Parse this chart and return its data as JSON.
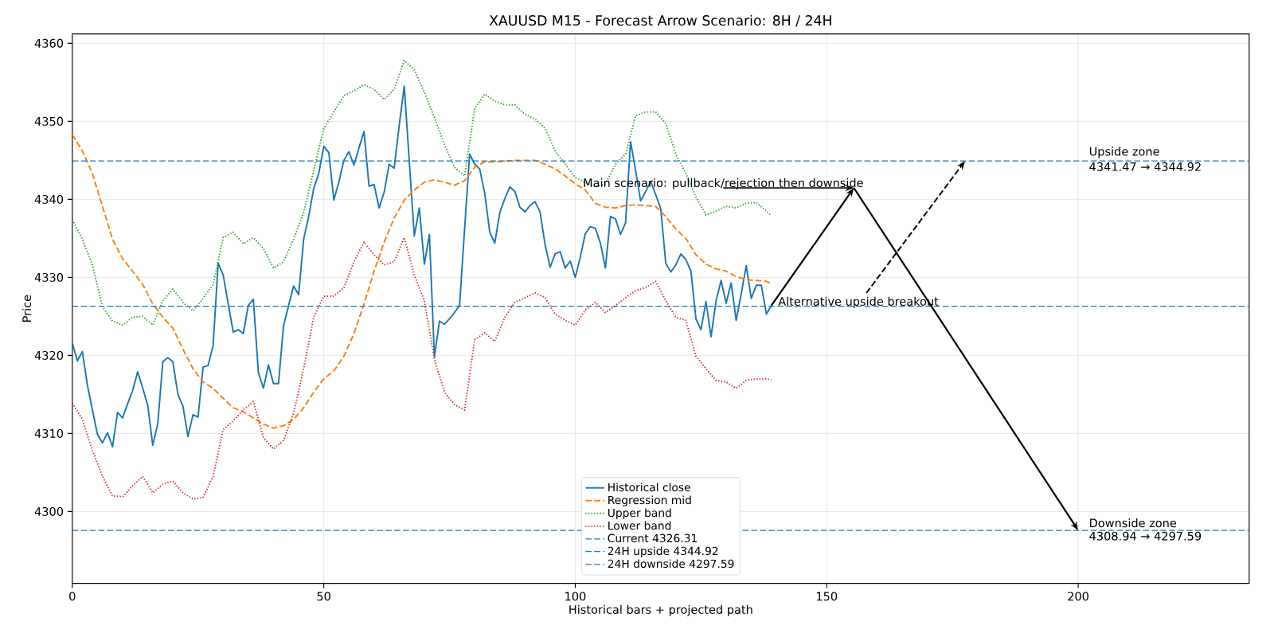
{
  "chart_data": {
    "type": "line",
    "title": "XAUUSD M15 - Forecast Arrow Scenario: 8H / 24H",
    "xlabel": "Historical bars + projected path",
    "ylabel": "Price",
    "xlim": [
      0,
      234
    ],
    "ylim": [
      4290.8,
      4361.2
    ],
    "xticks": [
      0,
      50,
      100,
      150,
      200
    ],
    "yticks": [
      4300,
      4310,
      4320,
      4330,
      4340,
      4350,
      4360
    ],
    "grid": true,
    "legend": "bottom",
    "series": [
      {
        "name": "Historical close",
        "color": "#1f77b4",
        "line_style": "solid",
        "x": [
          0,
          1,
          2,
          3,
          4,
          5,
          6,
          7,
          8,
          9,
          10,
          11,
          12,
          13,
          14,
          15,
          16,
          17,
          18,
          19,
          20,
          21,
          22,
          23,
          24,
          25,
          26,
          27,
          28,
          29,
          30,
          31,
          32,
          33,
          34,
          35,
          36,
          37,
          38,
          39,
          40,
          41,
          42,
          43,
          44,
          45,
          46,
          47,
          48,
          49,
          50,
          51,
          52,
          53,
          54,
          55,
          56,
          57,
          58,
          59,
          60,
          61,
          62,
          63,
          64,
          65,
          66,
          67,
          68,
          69,
          70,
          71,
          72,
          73,
          74,
          75,
          76,
          77,
          78,
          79,
          80,
          81,
          82,
          83,
          84,
          85,
          86,
          87,
          88,
          89,
          90,
          91,
          92,
          93,
          94,
          95,
          96,
          97,
          98,
          99,
          100,
          101,
          102,
          103,
          104,
          105,
          106,
          107,
          108,
          109,
          110,
          111,
          112,
          113,
          114,
          115,
          116,
          117,
          118,
          119,
          120,
          121,
          122,
          123,
          124,
          125,
          126,
          127,
          128,
          129,
          130,
          131,
          132,
          133,
          134,
          135,
          136,
          137,
          138,
          139
        ],
        "values": [
          4321.6,
          4319.3,
          4320.5,
          4316.2,
          4313.0,
          4309.9,
          4308.8,
          4310.1,
          4308.3,
          4312.7,
          4312.0,
          4313.8,
          4315.5,
          4317.9,
          4315.8,
          4313.6,
          4308.5,
          4311.3,
          4319.2,
          4319.7,
          4319.2,
          4315.0,
          4313.5,
          4309.6,
          4312.4,
          4312.1,
          4318.5,
          4318.7,
          4321.3,
          4331.8,
          4330.3,
          4326.6,
          4323.0,
          4323.3,
          4322.8,
          4326.4,
          4327.2,
          4317.8,
          4315.8,
          4318.8,
          4316.4,
          4316.4,
          4323.8,
          4326.4,
          4328.9,
          4327.8,
          4334.9,
          4337.8,
          4341.4,
          4343.3,
          4346.8,
          4346.0,
          4339.9,
          4342.2,
          4345.0,
          4346.1,
          4344.4,
          4346.6,
          4348.7,
          4341.7,
          4341.9,
          4338.9,
          4340.9,
          4344.5,
          4344.0,
          4349.5,
          4354.5,
          4344.9,
          4335.3,
          4338.9,
          4331.7,
          4335.5,
          4319.8,
          4324.4,
          4324.0,
          4324.7,
          4325.5,
          4326.4,
          4336.2,
          4345.8,
          4344.5,
          4343.9,
          4340.8,
          4335.8,
          4334.4,
          4338.3,
          4340.1,
          4341.6,
          4341.0,
          4339.0,
          4338.4,
          4339.2,
          4339.7,
          4338.4,
          4334.2,
          4331.3,
          4333.0,
          4333.3,
          4331.2,
          4332.1,
          4330.0,
          4332.6,
          4335.6,
          4336.5,
          4336.3,
          4334.4,
          4331.2,
          4337.8,
          4337.5,
          4335.5,
          4337.0,
          4347.4,
          4343.7,
          4339.8,
          4341.0,
          4342.3,
          4340.6,
          4338.8,
          4331.8,
          4330.7,
          4331.6,
          4333.0,
          4332.3,
          4330.8,
          4324.7,
          4323.3,
          4326.9,
          4322.4,
          4327.0,
          4329.6,
          4326.7,
          4329.3,
          4324.5,
          4327.9,
          4331.5,
          4327.3,
          4329.0,
          4329.0,
          4325.3,
          4326.4
        ]
      },
      {
        "name": "Regression mid",
        "color": "#ff7f0e",
        "line_style": "dashed",
        "x": [
          0,
          2,
          4,
          6,
          8,
          10,
          12,
          14,
          16,
          18,
          20,
          22,
          24,
          26,
          28,
          30,
          32,
          34,
          36,
          38,
          40,
          42,
          44,
          46,
          48,
          50,
          52,
          54,
          56,
          58,
          60,
          62,
          64,
          66,
          68,
          70,
          72,
          74,
          76,
          78,
          80,
          82,
          84,
          86,
          88,
          90,
          92,
          94,
          96,
          98,
          100,
          102,
          104,
          106,
          108,
          110,
          112,
          114,
          116,
          118,
          120,
          122,
          124,
          126,
          128,
          130,
          132,
          134,
          136,
          138,
          139
        ],
        "values": [
          4348.3,
          4346.2,
          4343.3,
          4339.1,
          4334.9,
          4332.4,
          4330.8,
          4329.1,
          4326.6,
          4324.9,
          4323.5,
          4320.8,
          4318.3,
          4316.6,
          4315.8,
          4314.5,
          4313.3,
          4312.8,
          4312.0,
          4311.2,
          4310.7,
          4311.0,
          4311.8,
          4313.3,
          4315.3,
          4317.0,
          4318.0,
          4319.9,
          4322.8,
          4326.6,
          4330.8,
          4334.5,
          4337.6,
          4339.9,
          4341.2,
          4342.2,
          4342.5,
          4342.2,
          4341.8,
          4342.4,
          4344.1,
          4344.8,
          4344.8,
          4344.9,
          4345.0,
          4345.0,
          4345.0,
          4344.5,
          4343.9,
          4343.0,
          4342.0,
          4341.2,
          4339.5,
          4339.0,
          4338.9,
          4339.2,
          4339.3,
          4339.2,
          4339.1,
          4337.8,
          4336.2,
          4335.0,
          4332.9,
          4331.7,
          4331.1,
          4330.8,
          4330.1,
          4329.7,
          4329.6,
          4329.5,
          4329.2
        ]
      },
      {
        "name": "Upper band",
        "color": "#2ca02c",
        "line_style": "dotted",
        "x": [
          0,
          2,
          4,
          6,
          8,
          10,
          12,
          14,
          16,
          18,
          20,
          22,
          24,
          26,
          28,
          30,
          32,
          34,
          36,
          38,
          40,
          42,
          44,
          46,
          48,
          50,
          52,
          54,
          56,
          58,
          60,
          62,
          64,
          66,
          68,
          70,
          72,
          74,
          76,
          78,
          80,
          82,
          84,
          86,
          88,
          90,
          92,
          94,
          96,
          98,
          100,
          104,
          106,
          108,
          110,
          112,
          114,
          116,
          118,
          120,
          122,
          124,
          126,
          128,
          130,
          132,
          134,
          136,
          138,
          139
        ],
        "values": [
          4337.4,
          4334.9,
          4331.6,
          4326.2,
          4324.4,
          4323.9,
          4324.9,
          4325.0,
          4323.9,
          4327.0,
          4328.5,
          4326.8,
          4325.7,
          4327.3,
          4329.1,
          4335.1,
          4335.8,
          4334.3,
          4335.1,
          4333.7,
          4331.2,
          4332.0,
          4334.9,
          4338.3,
          4343.7,
          4349.1,
          4351.2,
          4353.3,
          4353.9,
          4354.7,
          4354.1,
          4352.8,
          4354.1,
          4357.8,
          4356.6,
          4353.7,
          4350.5,
          4347.0,
          4344.1,
          4343.0,
          4351.6,
          4353.5,
          4352.6,
          4352.1,
          4352.1,
          4350.9,
          4350.3,
          4349.1,
          4346.2,
          4344.5,
          4342.8,
          4341.6,
          4342.0,
          4344.5,
          4345.8,
          4350.7,
          4351.2,
          4351.2,
          4349.7,
          4345.8,
          4343.3,
          4340.3,
          4338.0,
          4338.5,
          4339.1,
          4338.9,
          4339.5,
          4339.6,
          4338.5,
          4337.9
        ]
      },
      {
        "name": "Lower band",
        "color": "#d62728",
        "line_style": "dotted",
        "x": [
          0,
          2,
          4,
          6,
          8,
          10,
          12,
          14,
          16,
          18,
          20,
          22,
          24,
          26,
          28,
          30,
          32,
          34,
          36,
          38,
          40,
          42,
          44,
          46,
          48,
          50,
          52,
          54,
          56,
          58,
          60,
          62,
          64,
          66,
          68,
          70,
          72,
          74,
          76,
          78,
          80,
          82,
          84,
          86,
          88,
          90,
          92,
          94,
          96,
          98,
          100,
          102,
          104,
          106,
          108,
          110,
          112,
          114,
          116,
          118,
          120,
          122,
          124,
          126,
          128,
          130,
          132,
          134,
          136,
          138,
          139
        ],
        "values": [
          4313.9,
          4311.8,
          4307.8,
          4304.5,
          4302.0,
          4301.9,
          4303.3,
          4304.5,
          4302.4,
          4303.5,
          4303.9,
          4302.4,
          4301.6,
          4301.8,
          4304.5,
          4310.5,
          4311.6,
          4313.0,
          4314.1,
          4309.5,
          4308.0,
          4309.1,
          4312.6,
          4318.3,
          4324.9,
          4327.6,
          4327.6,
          4328.7,
          4332.0,
          4334.5,
          4332.9,
          4331.6,
          4332.0,
          4335.1,
          4330.3,
          4327.0,
          4319.5,
          4315.3,
          4313.7,
          4313.0,
          4322.0,
          4322.9,
          4321.8,
          4324.9,
          4326.8,
          4327.4,
          4328.0,
          4327.4,
          4325.3,
          4324.5,
          4323.9,
          4325.8,
          4326.8,
          4325.5,
          4326.4,
          4327.4,
          4328.3,
          4328.7,
          4329.5,
          4327.0,
          4324.9,
          4324.5,
          4319.9,
          4318.3,
          4316.8,
          4316.6,
          4315.8,
          4316.8,
          4317.0,
          4317.0,
          4316.9
        ]
      }
    ],
    "ref_lines": [
      {
        "axis": "y",
        "value": 4326.31,
        "label": "Current 4326.31",
        "color": "#1f77b4",
        "line_style": "dashed"
      },
      {
        "axis": "y",
        "value": 4344.92,
        "label": "24H upside 4344.92",
        "color": "#1f77b4",
        "line_style": "dashed"
      },
      {
        "axis": "y",
        "value": 4297.59,
        "label": "24H downside 4297.59",
        "color": "#1f77b4",
        "line_style": "dashed"
      }
    ],
    "annotations": [
      {
        "text": "Main scenario: pullback/rejection then downside",
        "x": 200,
        "y": 4297.59
      },
      {
        "text": "Alternative upside breakout",
        "x": 177.5,
        "y": 4344.92
      },
      {
        "text": "Upside zone",
        "x": 202.1,
        "y": 4344.92
      },
      {
        "text": "4341.47 → 4344.92",
        "x": 202.1,
        "y": 4344.92
      },
      {
        "text": "Downside zone",
        "x": 202.1,
        "y": 4297.59
      },
      {
        "text": "4308.94 → 4297.59",
        "x": 202.1,
        "y": 4297.59
      }
    ]
  }
}
